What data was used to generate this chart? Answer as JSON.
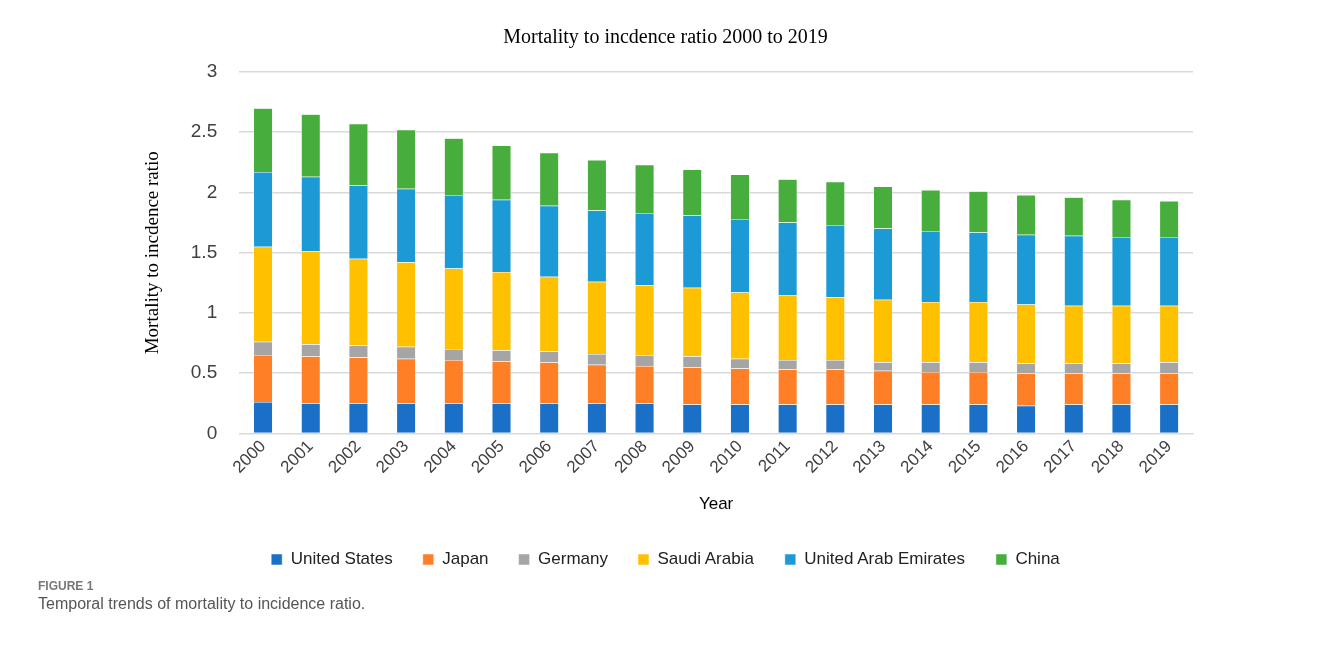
{
  "chart_data": {
    "type": "bar",
    "title": "Mortality to incdence ratio 2000 to 2019",
    "xlabel": "Year",
    "ylabel": "Mortality to incdence ratio",
    "categories": [
      "2000",
      "2001",
      "2002",
      "2003",
      "2004",
      "2005",
      "2006",
      "2007",
      "2008",
      "2009",
      "2010",
      "2011",
      "2012",
      "2013",
      "2014",
      "2015",
      "2016",
      "2017",
      "2018",
      "2019"
    ],
    "stacked": true,
    "ylim": [
      0,
      3
    ],
    "yticks": [
      0,
      0.5,
      1,
      1.5,
      2,
      2.5,
      3
    ],
    "grid": "y",
    "legend": "bottom",
    "series": [
      {
        "name": "United States",
        "color": "#1a6fc7",
        "values": [
          0.26,
          0.25,
          0.25,
          0.25,
          0.25,
          0.25,
          0.25,
          0.25,
          0.25,
          0.24,
          0.24,
          0.24,
          0.24,
          0.24,
          0.24,
          0.24,
          0.23,
          0.24,
          0.24,
          0.24
        ]
      },
      {
        "name": "Japan",
        "color": "#ff7f27",
        "values": [
          0.39,
          0.39,
          0.38,
          0.37,
          0.36,
          0.35,
          0.34,
          0.32,
          0.31,
          0.31,
          0.3,
          0.29,
          0.29,
          0.28,
          0.27,
          0.27,
          0.27,
          0.26,
          0.26,
          0.26
        ]
      },
      {
        "name": "Germany",
        "color": "#a5a5a5",
        "values": [
          0.11,
          0.1,
          0.1,
          0.1,
          0.09,
          0.09,
          0.09,
          0.09,
          0.09,
          0.09,
          0.08,
          0.08,
          0.08,
          0.07,
          0.08,
          0.08,
          0.08,
          0.08,
          0.08,
          0.09
        ]
      },
      {
        "name": "Saudi Arabia",
        "color": "#ffc000",
        "values": [
          0.79,
          0.77,
          0.72,
          0.7,
          0.67,
          0.65,
          0.62,
          0.6,
          0.58,
          0.57,
          0.55,
          0.54,
          0.52,
          0.52,
          0.5,
          0.5,
          0.49,
          0.48,
          0.48,
          0.47
        ]
      },
      {
        "name": "United Arab Emirates",
        "color": "#1c9ad6",
        "values": [
          0.62,
          0.62,
          0.61,
          0.61,
          0.61,
          0.6,
          0.59,
          0.59,
          0.6,
          0.6,
          0.61,
          0.6,
          0.6,
          0.59,
          0.59,
          0.58,
          0.58,
          0.58,
          0.57,
          0.57
        ]
      },
      {
        "name": "China",
        "color": "#47ad3c",
        "values": [
          0.53,
          0.52,
          0.51,
          0.49,
          0.47,
          0.45,
          0.44,
          0.42,
          0.4,
          0.38,
          0.37,
          0.36,
          0.36,
          0.35,
          0.34,
          0.34,
          0.33,
          0.32,
          0.31,
          0.3
        ]
      }
    ],
    "annotations": [
      "FIGURE 1",
      "Temporal trends of mortality to incidence ratio."
    ]
  }
}
